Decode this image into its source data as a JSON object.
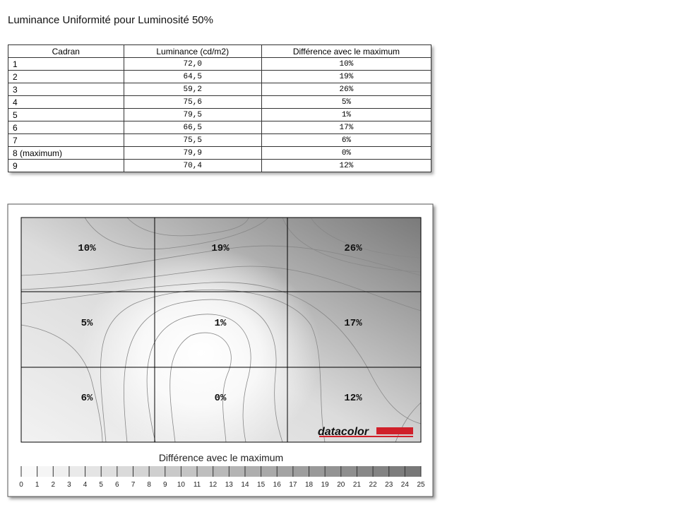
{
  "header": {
    "title": "Luminance Uniformité pour Luminosité 50%"
  },
  "table": {
    "columns": [
      "Cadran",
      "Luminance (cd/m2)",
      "Différence avec le maximum"
    ],
    "rows": [
      [
        "1",
        "72,0",
        "10%"
      ],
      [
        "2",
        "64,5",
        "19%"
      ],
      [
        "3",
        "59,2",
        "26%"
      ],
      [
        "4",
        "75,6",
        "5%"
      ],
      [
        "5",
        "79,5",
        "1%"
      ],
      [
        "6",
        "66,5",
        "17%"
      ],
      [
        "7",
        "75,5",
        "6%"
      ],
      [
        "8 (maximum)",
        "79,9",
        "0%"
      ],
      [
        "9",
        "70,4",
        "12%"
      ]
    ]
  },
  "map": {
    "labels": [
      "10%",
      "19%",
      "26%",
      "5%",
      "1%",
      "17%",
      "6%",
      "0%",
      "12%"
    ],
    "logo": "datacolor",
    "legend_title": "Différence avec le maximum",
    "scale": [
      "0",
      "1",
      "2",
      "3",
      "4",
      "5",
      "6",
      "7",
      "8",
      "9",
      "10",
      "11",
      "12",
      "13",
      "14",
      "15",
      "16",
      "17",
      "18",
      "19",
      "20",
      "21",
      "22",
      "23",
      "24",
      "25"
    ]
  }
}
